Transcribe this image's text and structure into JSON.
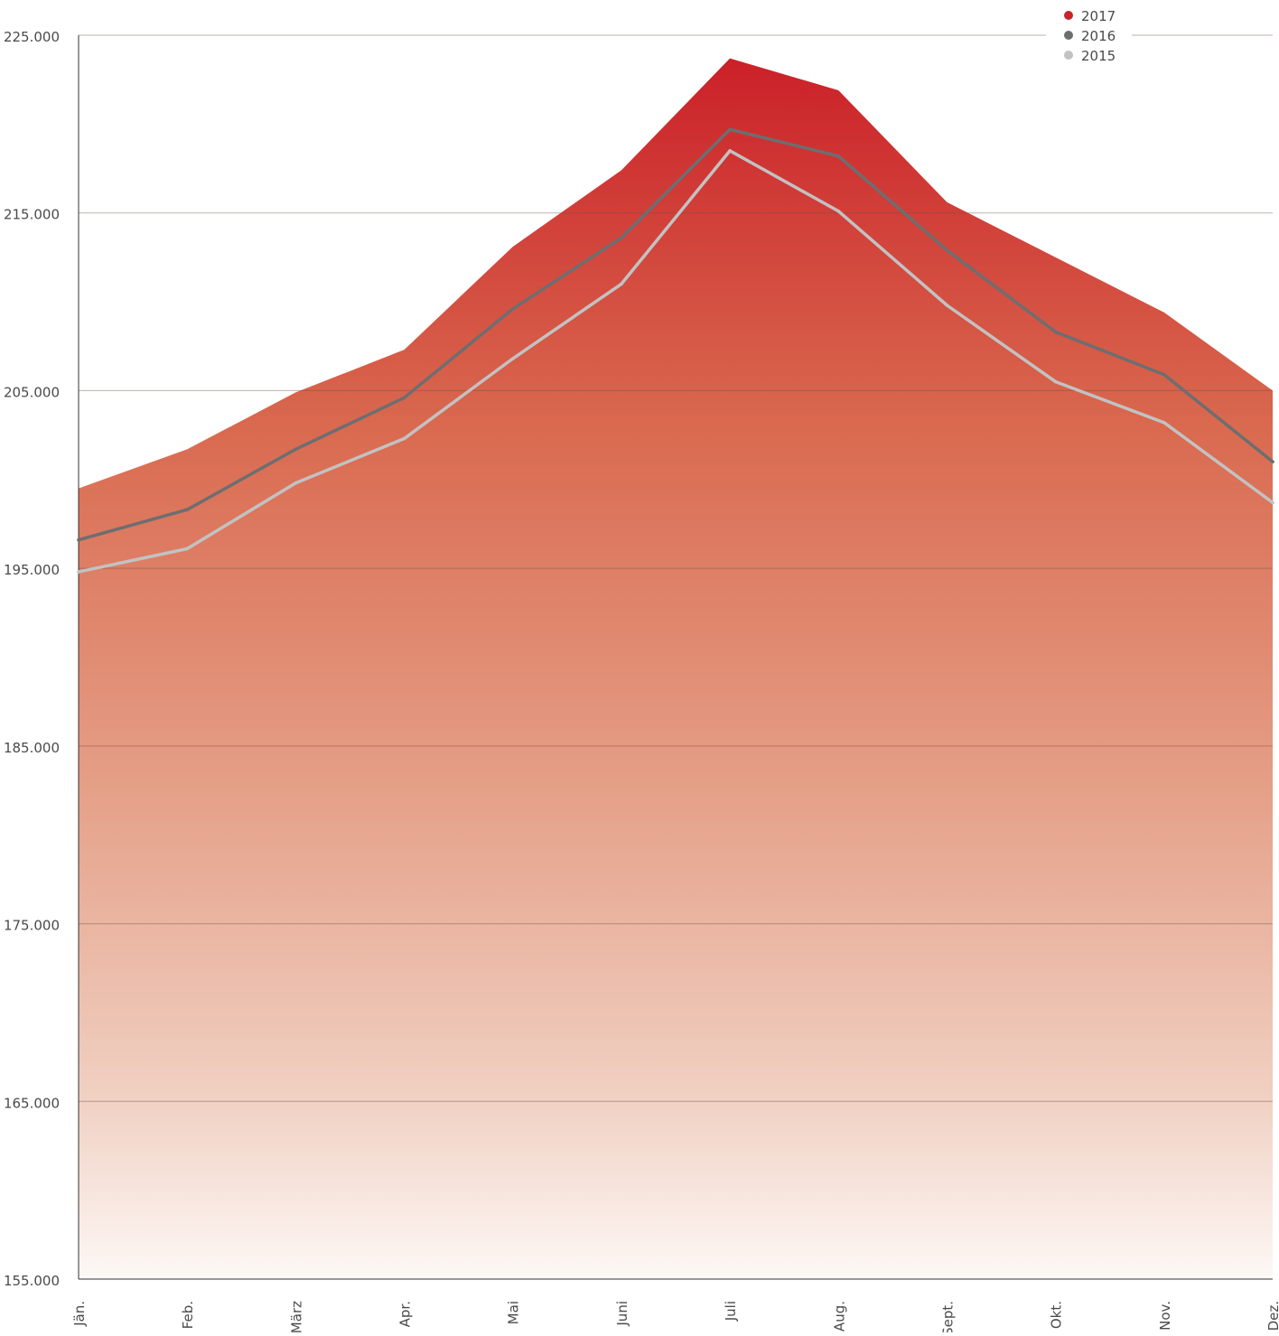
{
  "chart_data": {
    "type": "area",
    "title": "",
    "xlabel": "",
    "ylabel": "",
    "categories": [
      "Jän.",
      "Feb.",
      "März",
      "Apr.",
      "Mai",
      "Juni",
      "Juli",
      "Aug.",
      "Sept.",
      "Okt.",
      "Nov.",
      "Dez."
    ],
    "ylim": [
      155000,
      225000
    ],
    "yticks": [
      155000,
      165000,
      175000,
      185000,
      195000,
      205000,
      215000,
      225000
    ],
    "ytick_labels": [
      "155.000",
      "165.000",
      "175.000",
      "185.000",
      "195.000",
      "205.000",
      "215.000",
      "225.000"
    ],
    "grid": true,
    "legend_position": "top-right",
    "series": [
      {
        "name": "2017",
        "style": "area",
        "color": "#c8232b",
        "values": [
          199500,
          201700,
          204900,
          207300,
          213100,
          217400,
          223700,
          221900,
          215600,
          212500,
          209400,
          205000
        ]
      },
      {
        "name": "2016",
        "style": "line",
        "color": "#6d6e70",
        "values": [
          196600,
          198300,
          201700,
          204600,
          209600,
          213600,
          219700,
          218200,
          212900,
          208300,
          205900,
          201000
        ]
      },
      {
        "name": "2015",
        "style": "line",
        "color": "#c2c2c2",
        "values": [
          194800,
          196100,
          199800,
          202300,
          206800,
          211000,
          218500,
          215100,
          209800,
          205500,
          203200,
          198700
        ]
      }
    ]
  }
}
